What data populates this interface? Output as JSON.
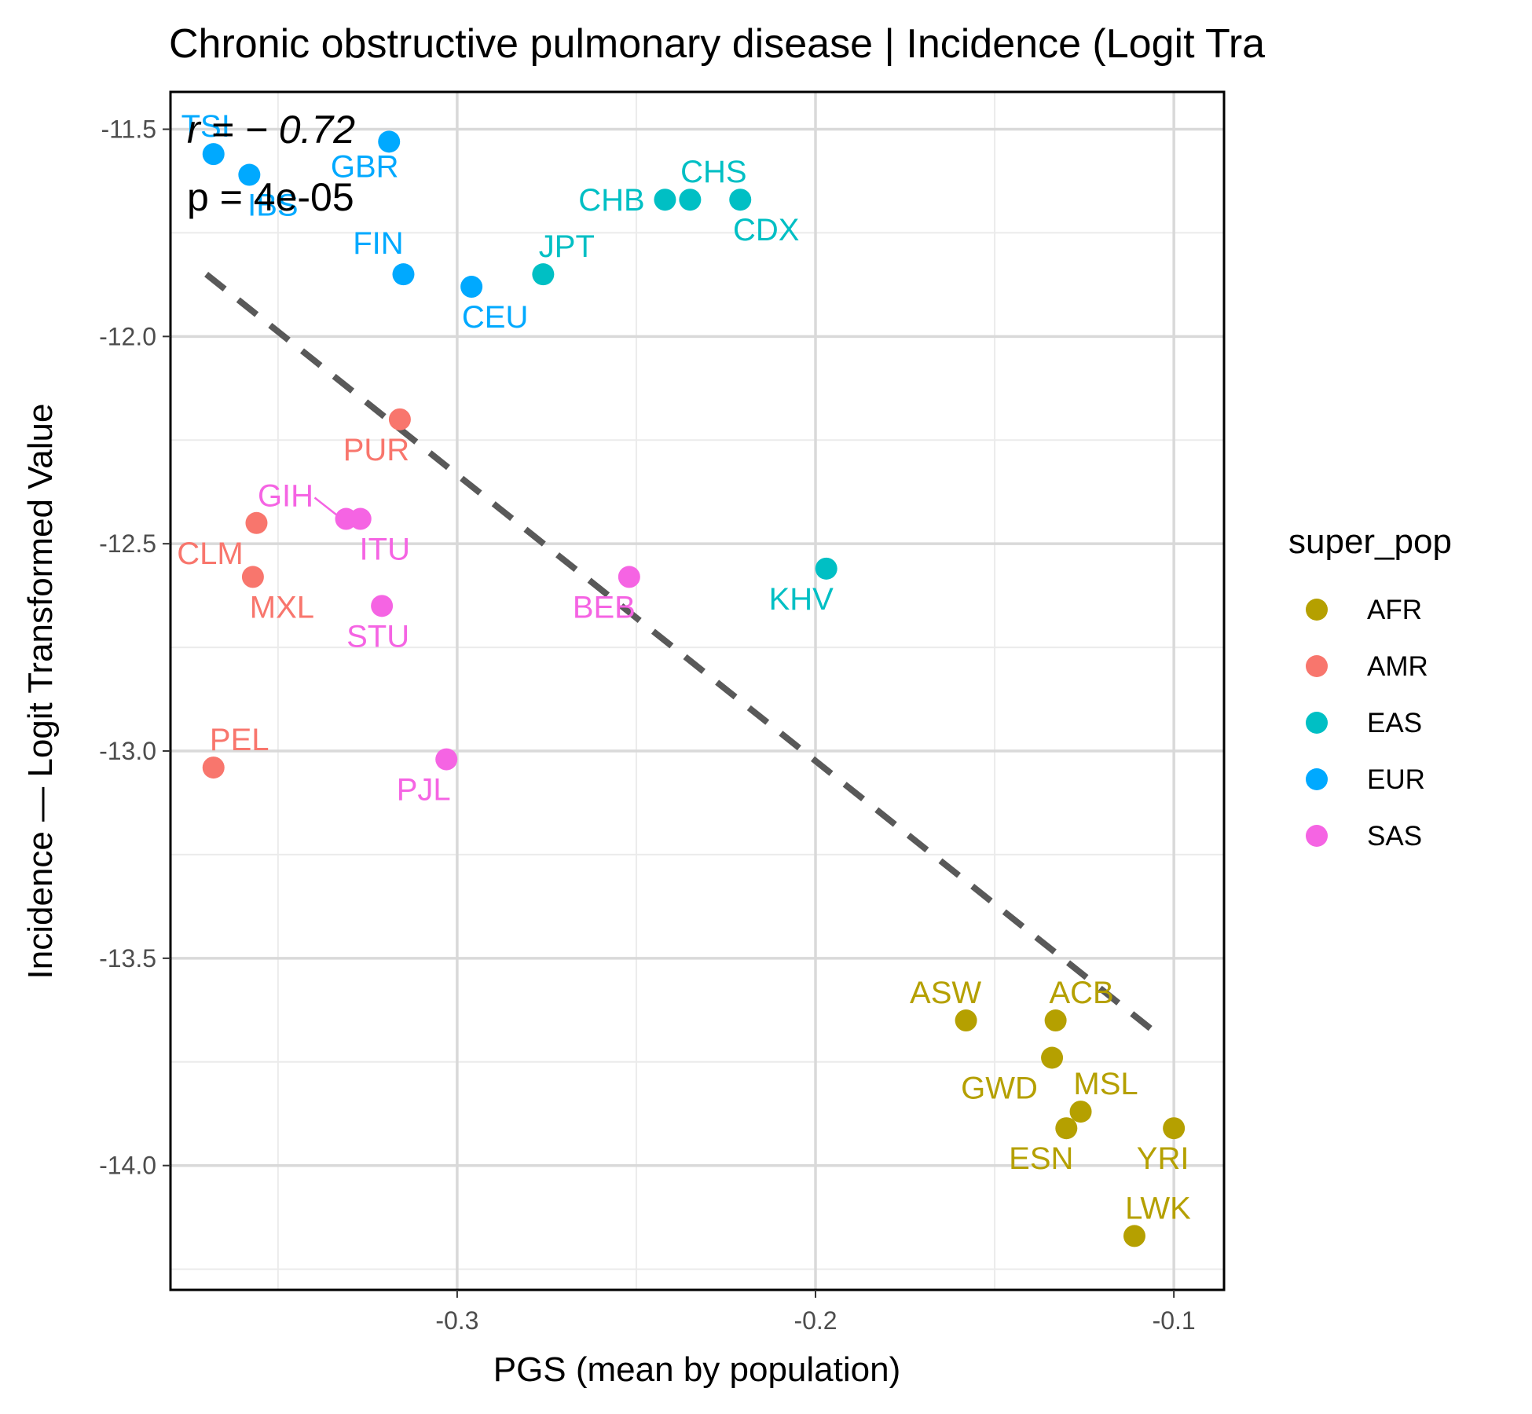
{
  "chart_data": {
    "type": "scatter",
    "title": "Chronic obstructive pulmonary disease | Incidence (Logit Tra",
    "xlabel": "PGS (mean by population)",
    "ylabel": "Incidence — Logit Transformed Value",
    "xlim": [
      -0.38,
      -0.086
    ],
    "ylim": [
      -14.3,
      -11.41
    ],
    "x_ticks": [
      -0.3,
      -0.2,
      -0.1
    ],
    "x_tick_labels": [
      "-0.3",
      "-0.2",
      "-0.1"
    ],
    "y_ticks": [
      -11.5,
      -12.0,
      -12.5,
      -13.0,
      -13.5,
      -14.0
    ],
    "y_tick_labels": [
      "-11.5",
      "-12.0",
      "-12.5",
      "-13.0",
      "-13.5",
      "-14.0"
    ],
    "grid": true,
    "legend": {
      "title": "super_pop",
      "position": "right",
      "entries": [
        {
          "name": "AFR",
          "color": "#b5a000"
        },
        {
          "name": "AMR",
          "color": "#f8766d"
        },
        {
          "name": "EAS",
          "color": "#00bfc4"
        },
        {
          "name": "EUR",
          "color": "#00a9ff"
        },
        {
          "name": "SAS",
          "color": "#f564e3"
        }
      ]
    },
    "stats": {
      "r": "r = − 0.72",
      "p": "p = 4e-05"
    },
    "trend_line": {
      "style": "dashed",
      "color": "#595959",
      "x": [
        -0.37,
        -0.105
      ],
      "y": [
        -11.85,
        -13.68
      ]
    },
    "points": [
      {
        "label": "TSI",
        "group": "EUR",
        "x": -0.368,
        "y": -11.56
      },
      {
        "label": "IBS",
        "group": "EUR",
        "x": -0.358,
        "y": -11.61
      },
      {
        "label": "GBR",
        "group": "EUR",
        "x": -0.319,
        "y": -11.53
      },
      {
        "label": "FIN",
        "group": "EUR",
        "x": -0.315,
        "y": -11.85
      },
      {
        "label": "CEU",
        "group": "EUR",
        "x": -0.296,
        "y": -11.88
      },
      {
        "label": "JPT",
        "group": "EAS",
        "x": -0.276,
        "y": -11.85
      },
      {
        "label": "CHB",
        "group": "EAS",
        "x": -0.242,
        "y": -11.67
      },
      {
        "label": "CHS",
        "group": "EAS",
        "x": -0.235,
        "y": -11.67
      },
      {
        "label": "CDX",
        "group": "EAS",
        "x": -0.221,
        "y": -11.67
      },
      {
        "label": "KHV",
        "group": "EAS",
        "x": -0.197,
        "y": -12.56
      },
      {
        "label": "PUR",
        "group": "AMR",
        "x": -0.316,
        "y": -12.2
      },
      {
        "label": "CLM",
        "group": "AMR",
        "x": -0.356,
        "y": -12.45
      },
      {
        "label": "MXL",
        "group": "AMR",
        "x": -0.357,
        "y": -12.58
      },
      {
        "label": "PEL",
        "group": "AMR",
        "x": -0.368,
        "y": -13.04
      },
      {
        "label": "GIH",
        "group": "SAS",
        "x": -0.331,
        "y": -12.44
      },
      {
        "label": "ITU",
        "group": "SAS",
        "x": -0.327,
        "y": -12.44
      },
      {
        "label": "STU",
        "group": "SAS",
        "x": -0.321,
        "y": -12.65
      },
      {
        "label": "BEB",
        "group": "SAS",
        "x": -0.252,
        "y": -12.58
      },
      {
        "label": "PJL",
        "group": "SAS",
        "x": -0.303,
        "y": -13.02
      },
      {
        "label": "ASW",
        "group": "AFR",
        "x": -0.158,
        "y": -13.65
      },
      {
        "label": "ACB",
        "group": "AFR",
        "x": -0.133,
        "y": -13.65
      },
      {
        "label": "GWD",
        "group": "AFR",
        "x": -0.134,
        "y": -13.74
      },
      {
        "label": "MSL",
        "group": "AFR",
        "x": -0.126,
        "y": -13.87
      },
      {
        "label": "ESN",
        "group": "AFR",
        "x": -0.13,
        "y": -13.91
      },
      {
        "label": "YRI",
        "group": "AFR",
        "x": -0.1,
        "y": -13.91
      },
      {
        "label": "LWK",
        "group": "AFR",
        "x": -0.111,
        "y": -14.17
      }
    ]
  }
}
